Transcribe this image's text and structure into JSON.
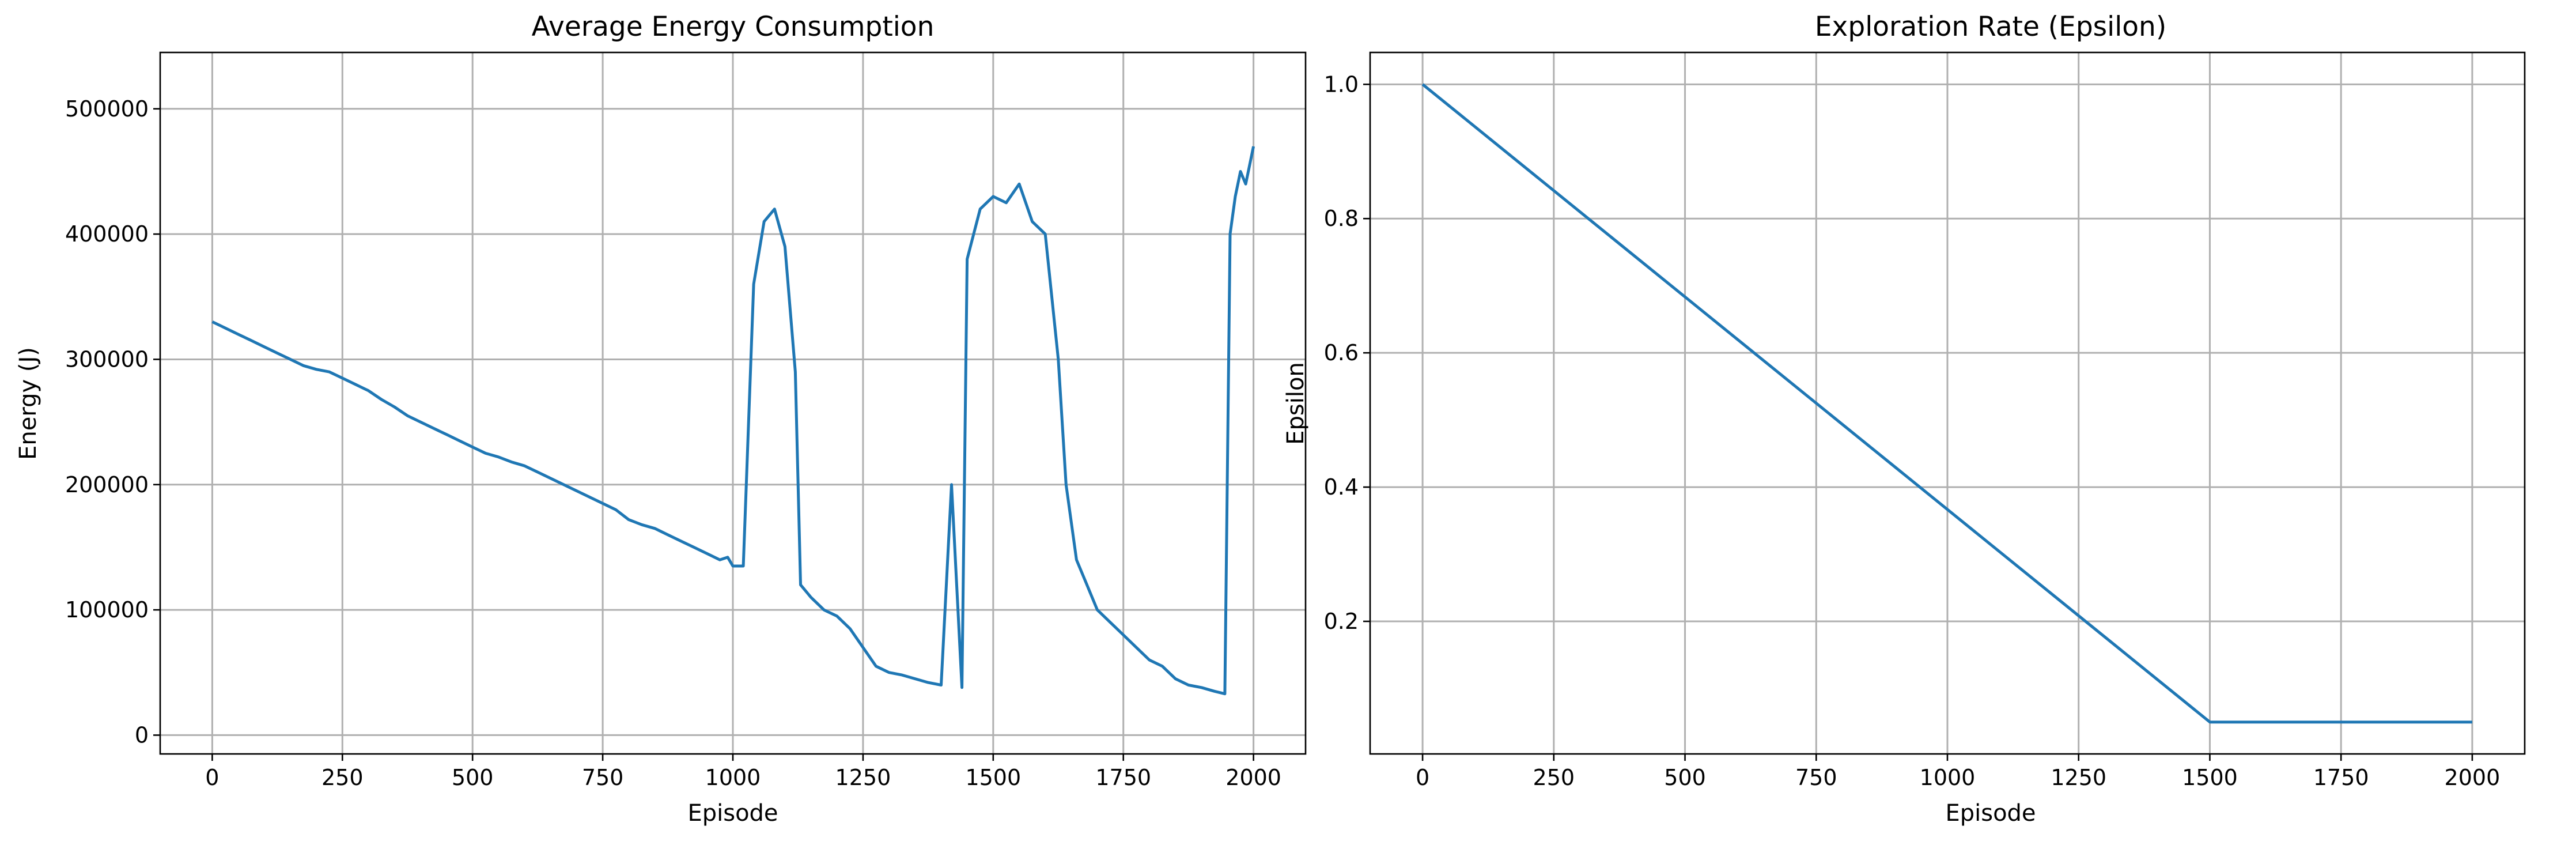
{
  "chart_data": [
    {
      "type": "line",
      "title": "Average Energy Consumption",
      "xlabel": "Episode",
      "ylabel": "Energy (J)",
      "xlim": [
        -100,
        2100
      ],
      "ylim": [
        -15000,
        545000
      ],
      "xticks": [
        0,
        250,
        500,
        750,
        1000,
        1250,
        1500,
        1750,
        2000
      ],
      "yticks": [
        0,
        100000,
        200000,
        300000,
        400000,
        500000
      ],
      "grid": true,
      "color": "#1f77b4",
      "series": [
        {
          "x": [
            0,
            25,
            50,
            75,
            100,
            125,
            150,
            175,
            200,
            225,
            250,
            275,
            300,
            325,
            350,
            375,
            400,
            425,
            450,
            475,
            500,
            525,
            550,
            575,
            600,
            625,
            650,
            675,
            700,
            725,
            750,
            775,
            800,
            825,
            850,
            875,
            900,
            925,
            950,
            975,
            990,
            1000,
            1020,
            1040,
            1060,
            1080,
            1100,
            1120,
            1130,
            1150,
            1175,
            1200,
            1225,
            1250,
            1275,
            1300,
            1325,
            1350,
            1375,
            1400,
            1420,
            1440,
            1450,
            1475,
            1500,
            1525,
            1550,
            1575,
            1600,
            1625,
            1640,
            1660,
            1680,
            1700,
            1725,
            1750,
            1775,
            1800,
            1825,
            1850,
            1875,
            1900,
            1925,
            1945,
            1955,
            1965,
            1975,
            1985,
            1995,
            2000
          ],
          "y": [
            330000,
            325000,
            320000,
            315000,
            310000,
            305000,
            300000,
            295000,
            292000,
            290000,
            285000,
            280000,
            275000,
            268000,
            262000,
            255000,
            250000,
            245000,
            240000,
            235000,
            230000,
            225000,
            222000,
            218000,
            215000,
            210000,
            205000,
            200000,
            195000,
            190000,
            185000,
            180000,
            172000,
            168000,
            165000,
            160000,
            155000,
            150000,
            145000,
            140000,
            142000,
            135000,
            135000,
            360000,
            410000,
            420000,
            390000,
            290000,
            120000,
            110000,
            100000,
            95000,
            85000,
            70000,
            55000,
            50000,
            48000,
            45000,
            42000,
            40000,
            200000,
            38000,
            380000,
            420000,
            430000,
            425000,
            440000,
            410000,
            400000,
            300000,
            200000,
            140000,
            120000,
            100000,
            90000,
            80000,
            70000,
            60000,
            55000,
            45000,
            40000,
            38000,
            35000,
            33000,
            400000,
            430000,
            450000,
            440000,
            460000,
            470000
          ]
        }
      ]
    },
    {
      "type": "line",
      "title": "Exploration Rate (Epsilon)",
      "xlabel": "Episode",
      "ylabel": "Epsilon",
      "xlim": [
        -100,
        2100
      ],
      "ylim": [
        0.0025,
        1.0475
      ],
      "xticks": [
        0,
        250,
        500,
        750,
        1000,
        1250,
        1500,
        1750,
        2000
      ],
      "yticks": [
        0.2,
        0.4,
        0.6,
        0.8,
        1.0
      ],
      "grid": true,
      "color": "#1f77b4",
      "series": [
        {
          "x": [
            0,
            1500,
            2000
          ],
          "y": [
            1.0,
            0.05,
            0.05
          ]
        }
      ]
    }
  ],
  "titles": [
    "Average Energy Consumption",
    "Exploration Rate (Epsilon)"
  ],
  "xlabels": [
    "Episode",
    "Episode"
  ],
  "ylabels": [
    "Energy (J)",
    "Epsilon"
  ],
  "xtick_labels": [
    "0",
    "250",
    "500",
    "750",
    "1000",
    "1250",
    "1500",
    "1750",
    "2000"
  ],
  "ytick_labels_left": [
    "0",
    "100000",
    "200000",
    "300000",
    "400000",
    "500000"
  ],
  "ytick_labels_right": [
    "0.2",
    "0.4",
    "0.6",
    "0.8",
    "1.0"
  ]
}
